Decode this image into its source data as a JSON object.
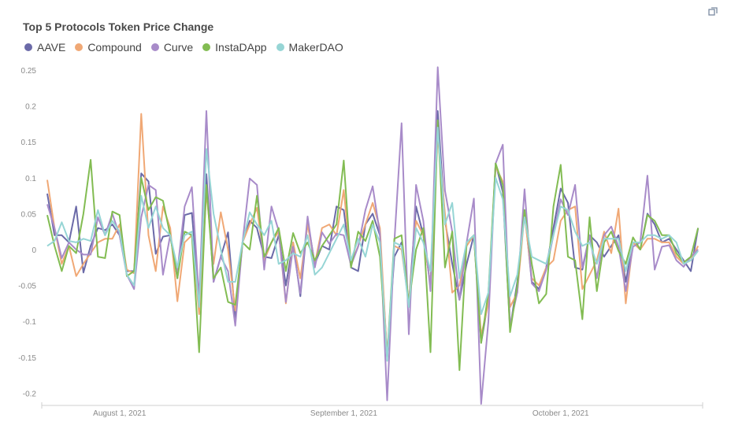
{
  "chart_data": {
    "type": "line",
    "title": "Top 5 Protocols Token Price Change",
    "xlabel": "",
    "ylabel": "",
    "ylim": [
      -0.22,
      0.26
    ],
    "grid": false,
    "legend_placement": "top-left",
    "y_ticks": [
      "0.25",
      "0.2",
      "0.15",
      "0.1",
      "0.05",
      "0",
      "-0.05",
      "-0.1",
      "-0.15",
      "-0.2"
    ],
    "y_tick_values": [
      0.25,
      0.2,
      0.15,
      0.1,
      0.05,
      0,
      -0.05,
      -0.1,
      -0.15,
      -0.2
    ],
    "x_ticks": [
      {
        "label": "August 1, 2021",
        "date": "2021-08-01"
      },
      {
        "label": "September 1, 2021",
        "date": "2021-09-01"
      },
      {
        "label": "October 1, 2021",
        "date": "2021-10-01"
      }
    ],
    "x": [
      "2021-07-22",
      "2021-07-23",
      "2021-07-24",
      "2021-07-25",
      "2021-07-26",
      "2021-07-27",
      "2021-07-28",
      "2021-07-29",
      "2021-07-30",
      "2021-07-31",
      "2021-08-01",
      "2021-08-02",
      "2021-08-03",
      "2021-08-04",
      "2021-08-05",
      "2021-08-06",
      "2021-08-07",
      "2021-08-08",
      "2021-08-09",
      "2021-08-10",
      "2021-08-11",
      "2021-08-12",
      "2021-08-13",
      "2021-08-14",
      "2021-08-15",
      "2021-08-16",
      "2021-08-17",
      "2021-08-18",
      "2021-08-19",
      "2021-08-20",
      "2021-08-21",
      "2021-08-22",
      "2021-08-23",
      "2021-08-24",
      "2021-08-25",
      "2021-08-26",
      "2021-08-27",
      "2021-08-28",
      "2021-08-29",
      "2021-08-30",
      "2021-08-31",
      "2021-09-01",
      "2021-09-02",
      "2021-09-03",
      "2021-09-04",
      "2021-09-05",
      "2021-09-06",
      "2021-09-07",
      "2021-09-08",
      "2021-09-09",
      "2021-09-10",
      "2021-09-11",
      "2021-09-12",
      "2021-09-13",
      "2021-09-14",
      "2021-09-15",
      "2021-09-16",
      "2021-09-17",
      "2021-09-18",
      "2021-09-19",
      "2021-09-20",
      "2021-09-21",
      "2021-09-22",
      "2021-09-23",
      "2021-09-24",
      "2021-09-25",
      "2021-09-26",
      "2021-09-27",
      "2021-09-28",
      "2021-09-29",
      "2021-09-30",
      "2021-10-01",
      "2021-10-02",
      "2021-10-03",
      "2021-10-04",
      "2021-10-05",
      "2021-10-06",
      "2021-10-07",
      "2021-10-08",
      "2021-10-09",
      "2021-10-10",
      "2021-10-11",
      "2021-10-12",
      "2021-10-13",
      "2021-10-14",
      "2021-10-15",
      "2021-10-16",
      "2021-10-17",
      "2021-10-18",
      "2021-10-19",
      "2021-10-20"
    ],
    "series": [
      {
        "name": "AAVE",
        "color": "#6b6aa8",
        "values": [
          0.078,
          0.02,
          0.02,
          0.01,
          0.06,
          -0.032,
          0.005,
          0.03,
          0.027,
          0.035,
          0.02,
          -0.03,
          -0.03,
          0.106,
          0.095,
          -0.006,
          0.018,
          0.02,
          -0.04,
          0.048,
          0.051,
          -0.07,
          0.105,
          -0.045,
          -0.01,
          0.024,
          -0.095,
          0.01,
          0.04,
          0.03,
          -0.01,
          -0.012,
          0.02,
          -0.05,
          0.01,
          -0.065,
          0.04,
          -0.02,
          0.005,
          0,
          0.06,
          0.055,
          -0.025,
          -0.03,
          0.035,
          0.05,
          0.02,
          -0.15,
          -0.01,
          0.01,
          -0.075,
          0.06,
          0.02,
          -0.05,
          0.193,
          0.04,
          -0.02,
          -0.07,
          -0.02,
          0.02,
          -0.13,
          -0.07,
          0.12,
          0.08,
          -0.11,
          -0.045,
          0.055,
          -0.045,
          -0.055,
          -0.025,
          0.03,
          0.085,
          0.065,
          -0.025,
          -0.028,
          0.02,
          0.01,
          -0.01,
          0.005,
          0.02,
          -0.045,
          0.01,
          0,
          0.05,
          0.035,
          0.01,
          0.015,
          0,
          -0.015,
          -0.03,
          0.03
        ]
      },
      {
        "name": "Compound",
        "color": "#f0a875",
        "values": [
          0.097,
          0.03,
          -0.02,
          0.005,
          -0.037,
          -0.02,
          -0.005,
          0.01,
          0.015,
          0.015,
          0.035,
          -0.028,
          -0.033,
          0.189,
          0.02,
          -0.03,
          0.06,
          0.03,
          -0.072,
          0.01,
          0.02,
          -0.09,
          0.08,
          -0.02,
          0.052,
          0,
          -0.085,
          0.01,
          0.035,
          0.058,
          -0.015,
          0.01,
          0.025,
          -0.075,
          0.01,
          -0.04,
          0.035,
          -0.02,
          0.03,
          0.035,
          0.02,
          0.083,
          -0.02,
          0.005,
          0.035,
          0.065,
          0.03,
          -0.15,
          0.005,
          0,
          -0.075,
          0.04,
          0.02,
          -0.05,
          0.16,
          0.05,
          -0.06,
          -0.05,
          0.005,
          0.02,
          -0.12,
          -0.075,
          0.115,
          0.095,
          -0.08,
          -0.06,
          0.05,
          -0.04,
          -0.05,
          -0.025,
          -0.015,
          0.04,
          0.055,
          0.06,
          -0.055,
          -0.035,
          -0.015,
          0.025,
          -0.005,
          0.057,
          -0.075,
          0.01,
          0,
          0.015,
          0.015,
          0.01,
          0.01,
          -0.01,
          -0.02,
          -0.015,
          0.005
        ]
      },
      {
        "name": "Curve",
        "color": "#a88bc9",
        "values": [
          0.063,
          0.03,
          -0.012,
          0.01,
          0,
          -0.007,
          -0.007,
          0.045,
          0.02,
          0.05,
          0.02,
          -0.035,
          -0.055,
          0.045,
          0.09,
          0.083,
          -0.035,
          0.02,
          -0.03,
          0.06,
          0.087,
          -0.07,
          0.193,
          -0.045,
          -0.01,
          -0.03,
          -0.106,
          0.01,
          0.099,
          0.09,
          -0.028,
          0.06,
          0.026,
          -0.073,
          0.004,
          -0.061,
          0.046,
          -0.025,
          0.024,
          0.008,
          0.022,
          0.02,
          -0.022,
          0.004,
          0.055,
          0.088,
          0.022,
          -0.21,
          0.01,
          0.176,
          -0.118,
          0.09,
          0.04,
          -0.058,
          0.254,
          0.082,
          0.025,
          -0.07,
          0.01,
          0.071,
          -0.215,
          -0.1,
          0.12,
          0.146,
          -0.105,
          -0.06,
          0.084,
          -0.047,
          -0.058,
          -0.028,
          0.02,
          0.07,
          0.048,
          0.09,
          -0.025,
          0.02,
          -0.04,
          0.02,
          0.032,
          0.004,
          -0.058,
          0.004,
          0.01,
          0.103,
          -0.028,
          0.004,
          0.006,
          -0.015,
          -0.024,
          -0.01,
          0
        ]
      },
      {
        "name": "InstaDApp",
        "color": "#82bc52",
        "values": [
          0.048,
          0.005,
          -0.03,
          0.005,
          -0.005,
          0.05,
          0.125,
          -0.01,
          -0.012,
          0.053,
          0.048,
          -0.037,
          -0.03,
          0.1,
          0.055,
          0.073,
          0.068,
          0.02,
          -0.04,
          0.025,
          0.02,
          -0.143,
          0.09,
          -0.04,
          -0.025,
          -0.073,
          -0.077,
          0.01,
          0,
          0.075,
          -0.01,
          0.01,
          0.03,
          -0.03,
          0.023,
          -0.005,
          0.01,
          -0.015,
          0.005,
          0.02,
          0.035,
          0.124,
          -0.025,
          0.025,
          0.012,
          0.04,
          -0.01,
          -0.15,
          0.015,
          0.02,
          -0.075,
          0,
          0.03,
          -0.143,
          0.18,
          -0.025,
          0.025,
          -0.168,
          0.01,
          0.02,
          -0.13,
          -0.06,
          0.12,
          0.09,
          -0.115,
          -0.05,
          0.055,
          -0.02,
          -0.075,
          -0.062,
          0.06,
          0.118,
          -0.01,
          -0.015,
          -0.097,
          0.045,
          -0.058,
          0.01,
          0.025,
          -0.002,
          -0.02,
          0.017,
          0,
          0.048,
          0.04,
          0.02,
          0.02,
          -0.005,
          -0.018,
          -0.01,
          0.03
        ]
      },
      {
        "name": "MakerDAO",
        "color": "#96d5d5",
        "values": [
          0.005,
          0.012,
          0.038,
          0.012,
          0.01,
          0.015,
          0.012,
          0.055,
          0.02,
          0.04,
          0.025,
          -0.035,
          -0.05,
          0.075,
          0.03,
          0.06,
          0.03,
          0.02,
          -0.025,
          0.02,
          0.025,
          -0.08,
          0.14,
          0.05,
          0,
          -0.045,
          -0.045,
          0.01,
          0.052,
          0.035,
          0.02,
          0.04,
          -0.02,
          -0.015,
          -0.005,
          -0.01,
          0.02,
          -0.035,
          -0.025,
          -0.005,
          0.015,
          0.035,
          -0.015,
          0.015,
          -0.01,
          0.035,
          0.01,
          -0.155,
          0.01,
          0.005,
          -0.08,
          0.03,
          0.01,
          -0.03,
          0.17,
          0.035,
          0.065,
          -0.04,
          0.01,
          0.02,
          -0.09,
          -0.06,
          0.1,
          0.07,
          -0.065,
          -0.035,
          0.045,
          -0.01,
          -0.015,
          -0.02,
          0.02,
          0.06,
          0.055,
          0.025,
          0.005,
          0.01,
          -0.02,
          0.015,
          0.015,
          0.015,
          -0.03,
          0.01,
          0.01,
          0.02,
          0.02,
          0.015,
          0.02,
          0.01,
          -0.02,
          -0.015,
          -0.002
        ]
      }
    ]
  },
  "toolbar": {
    "expand_icon": "expand-icon"
  }
}
